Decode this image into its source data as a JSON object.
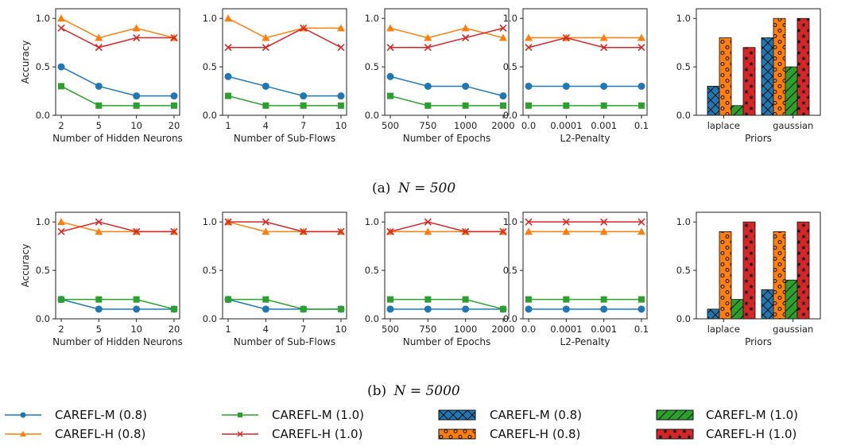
{
  "colors": {
    "CAREFL-M (0.8)": "#1f77b4",
    "CAREFL-H (0.8)": "#ff7f0e",
    "CAREFL-M (1.0)": "#2ca02c",
    "CAREFL-H (1.0)": "#d62728"
  },
  "captions": [
    {
      "prefix": "(a)",
      "math": "N = 500"
    },
    {
      "prefix": "(b)",
      "math": "N = 5000"
    }
  ],
  "legend": {
    "lines": [
      {
        "label": "CAREFL-M (0.8)",
        "marker": "circle"
      },
      {
        "label": "CAREFL-M (1.0)",
        "marker": "square"
      },
      {
        "label": "CAREFL-H (0.8)",
        "marker": "triangle"
      },
      {
        "label": "CAREFL-H (1.0)",
        "marker": "x"
      }
    ],
    "patches": [
      {
        "label": "CAREFL-M (0.8)",
        "hatch": "x"
      },
      {
        "label": "CAREFL-M (1.0)",
        "hatch": "slash"
      },
      {
        "label": "CAREFL-H (0.8)",
        "hatch": "circles"
      },
      {
        "label": "CAREFL-H (1.0)",
        "hatch": "stars"
      }
    ]
  },
  "chart_data": [
    {
      "type": "line",
      "row": 0,
      "col": 0,
      "xlabel": "Number of Hidden Neurons",
      "ylabel": "Accuracy",
      "ylim": [
        0,
        1.1
      ],
      "yticks": [
        "0.0",
        "0.5",
        "1.0"
      ],
      "categories": [
        "2",
        "5",
        "10",
        "20"
      ],
      "series": [
        {
          "name": "CAREFL-M (0.8)",
          "values": [
            0.5,
            0.3,
            0.2,
            0.2
          ]
        },
        {
          "name": "CAREFL-M (1.0)",
          "values": [
            0.3,
            0.1,
            0.1,
            0.1
          ]
        },
        {
          "name": "CAREFL-H (0.8)",
          "values": [
            1.0,
            0.8,
            0.9,
            0.8
          ]
        },
        {
          "name": "CAREFL-H (1.0)",
          "values": [
            0.9,
            0.7,
            0.8,
            0.8
          ]
        }
      ]
    },
    {
      "type": "line",
      "row": 0,
      "col": 1,
      "xlabel": "Number of Sub-Flows",
      "ylabel": "",
      "ylim": [
        0,
        1.1
      ],
      "yticks": [
        "0.0",
        "0.5",
        "1.0"
      ],
      "categories": [
        "1",
        "4",
        "7",
        "10"
      ],
      "series": [
        {
          "name": "CAREFL-M (0.8)",
          "values": [
            0.4,
            0.3,
            0.2,
            0.2
          ]
        },
        {
          "name": "CAREFL-M (1.0)",
          "values": [
            0.2,
            0.1,
            0.1,
            0.1
          ]
        },
        {
          "name": "CAREFL-H (0.8)",
          "values": [
            1.0,
            0.8,
            0.9,
            0.9
          ]
        },
        {
          "name": "CAREFL-H (1.0)",
          "values": [
            0.7,
            0.7,
            0.9,
            0.7
          ]
        }
      ]
    },
    {
      "type": "line",
      "row": 0,
      "col": 2,
      "xlabel": "Number of Epochs",
      "ylabel": "",
      "ylim": [
        0,
        1.1
      ],
      "yticks": [
        "0.0",
        "0.5",
        "1.0"
      ],
      "categories": [
        "500",
        "750",
        "1000",
        "2000"
      ],
      "series": [
        {
          "name": "CAREFL-M (0.8)",
          "values": [
            0.4,
            0.3,
            0.3,
            0.2
          ]
        },
        {
          "name": "CAREFL-M (1.0)",
          "values": [
            0.2,
            0.1,
            0.1,
            0.1
          ]
        },
        {
          "name": "CAREFL-H (0.8)",
          "values": [
            0.9,
            0.8,
            0.9,
            0.8
          ]
        },
        {
          "name": "CAREFL-H (1.0)",
          "values": [
            0.7,
            0.7,
            0.8,
            0.9
          ]
        }
      ]
    },
    {
      "type": "line",
      "row": 0,
      "col": 3,
      "xlabel": "L2-Penalty",
      "ylabel": "",
      "ylim": [
        0,
        1.1
      ],
      "yticks": [
        "0.0",
        "0.5",
        "1.0"
      ],
      "categories": [
        "0.0",
        "0.0001",
        "0.001",
        "0.1"
      ],
      "series": [
        {
          "name": "CAREFL-M (0.8)",
          "values": [
            0.3,
            0.3,
            0.3,
            0.3
          ]
        },
        {
          "name": "CAREFL-M (1.0)",
          "values": [
            0.1,
            0.1,
            0.1,
            0.1
          ]
        },
        {
          "name": "CAREFL-H (0.8)",
          "values": [
            0.8,
            0.8,
            0.8,
            0.8
          ]
        },
        {
          "name": "CAREFL-H (1.0)",
          "values": [
            0.7,
            0.8,
            0.7,
            0.7
          ]
        }
      ]
    },
    {
      "type": "bar",
      "row": 0,
      "col": 4,
      "xlabel": "Priors",
      "ylabel": "",
      "ylim": [
        0,
        1.1
      ],
      "yticks": [
        "0.0",
        "0.5",
        "1.0"
      ],
      "categories": [
        "laplace",
        "gaussian"
      ],
      "series": [
        {
          "name": "CAREFL-M (0.8)",
          "values": [
            0.3,
            0.8
          ]
        },
        {
          "name": "CAREFL-H (0.8)",
          "values": [
            0.8,
            1.0
          ]
        },
        {
          "name": "CAREFL-M (1.0)",
          "values": [
            0.1,
            0.5
          ]
        },
        {
          "name": "CAREFL-H (1.0)",
          "values": [
            0.7,
            1.0
          ]
        }
      ]
    },
    {
      "type": "line",
      "row": 1,
      "col": 0,
      "xlabel": "Number of Hidden Neurons",
      "ylabel": "Accuracy",
      "ylim": [
        0,
        1.1
      ],
      "yticks": [
        "0.0",
        "0.5",
        "1.0"
      ],
      "categories": [
        "2",
        "5",
        "10",
        "20"
      ],
      "series": [
        {
          "name": "CAREFL-M (0.8)",
          "values": [
            0.2,
            0.1,
            0.1,
            0.1
          ]
        },
        {
          "name": "CAREFL-M (1.0)",
          "values": [
            0.2,
            0.2,
            0.2,
            0.1
          ]
        },
        {
          "name": "CAREFL-H (0.8)",
          "values": [
            1.0,
            0.9,
            0.9,
            0.9
          ]
        },
        {
          "name": "CAREFL-H (1.0)",
          "values": [
            0.9,
            1.0,
            0.9,
            0.9
          ]
        }
      ]
    },
    {
      "type": "line",
      "row": 1,
      "col": 1,
      "xlabel": "Number of Sub-Flows",
      "ylabel": "",
      "ylim": [
        0,
        1.1
      ],
      "yticks": [
        "0.0",
        "0.5",
        "1.0"
      ],
      "categories": [
        "1",
        "4",
        "7",
        "10"
      ],
      "series": [
        {
          "name": "CAREFL-M (0.8)",
          "values": [
            0.2,
            0.1,
            0.1,
            0.1
          ]
        },
        {
          "name": "CAREFL-M (1.0)",
          "values": [
            0.2,
            0.2,
            0.1,
            0.1
          ]
        },
        {
          "name": "CAREFL-H (0.8)",
          "values": [
            1.0,
            0.9,
            0.9,
            0.9
          ]
        },
        {
          "name": "CAREFL-H (1.0)",
          "values": [
            1.0,
            1.0,
            0.9,
            0.9
          ]
        }
      ]
    },
    {
      "type": "line",
      "row": 1,
      "col": 2,
      "xlabel": "Number of Epochs",
      "ylabel": "",
      "ylim": [
        0,
        1.1
      ],
      "yticks": [
        "0.0",
        "0.5",
        "1.0"
      ],
      "categories": [
        "500",
        "750",
        "1000",
        "2000"
      ],
      "series": [
        {
          "name": "CAREFL-M (0.8)",
          "values": [
            0.1,
            0.1,
            0.1,
            0.1
          ]
        },
        {
          "name": "CAREFL-M (1.0)",
          "values": [
            0.2,
            0.2,
            0.2,
            0.1
          ]
        },
        {
          "name": "CAREFL-H (0.8)",
          "values": [
            0.9,
            0.9,
            0.9,
            0.9
          ]
        },
        {
          "name": "CAREFL-H (1.0)",
          "values": [
            0.9,
            1.0,
            0.9,
            0.9
          ]
        }
      ]
    },
    {
      "type": "line",
      "row": 1,
      "col": 3,
      "xlabel": "L2-Penalty",
      "ylabel": "",
      "ylim": [
        0,
        1.1
      ],
      "yticks": [
        "0.0",
        "0.5",
        "1.0"
      ],
      "categories": [
        "0.0",
        "0.0001",
        "0.001",
        "0.1"
      ],
      "series": [
        {
          "name": "CAREFL-M (0.8)",
          "values": [
            0.1,
            0.1,
            0.1,
            0.1
          ]
        },
        {
          "name": "CAREFL-M (1.0)",
          "values": [
            0.2,
            0.2,
            0.2,
            0.2
          ]
        },
        {
          "name": "CAREFL-H (0.8)",
          "values": [
            0.9,
            0.9,
            0.9,
            0.9
          ]
        },
        {
          "name": "CAREFL-H (1.0)",
          "values": [
            1.0,
            1.0,
            1.0,
            1.0
          ]
        }
      ]
    },
    {
      "type": "bar",
      "row": 1,
      "col": 4,
      "xlabel": "Priors",
      "ylabel": "",
      "ylim": [
        0,
        1.1
      ],
      "yticks": [
        "0.0",
        "0.5",
        "1.0"
      ],
      "categories": [
        "laplace",
        "gaussian"
      ],
      "series": [
        {
          "name": "CAREFL-M (0.8)",
          "values": [
            0.1,
            0.3
          ]
        },
        {
          "name": "CAREFL-H (0.8)",
          "values": [
            0.9,
            0.9
          ]
        },
        {
          "name": "CAREFL-M (1.0)",
          "values": [
            0.2,
            0.4
          ]
        },
        {
          "name": "CAREFL-H (1.0)",
          "values": [
            1.0,
            1.0
          ]
        }
      ]
    }
  ]
}
